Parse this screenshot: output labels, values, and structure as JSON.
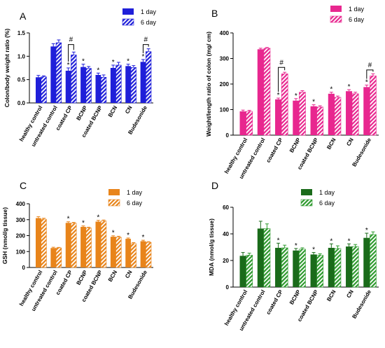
{
  "chart_data": [
    {
      "panel": "A",
      "type": "bar",
      "ylabel": "Colon/body weight ratio (%)",
      "ylim": [
        0,
        1.5
      ],
      "yticks": [
        "0.0",
        "0.5",
        "1.0",
        "1.5"
      ],
      "yticks_values": [
        0,
        0.5,
        1.0,
        1.5
      ],
      "categories": [
        "healthy control",
        "untreated control",
        "coated CP",
        "BCNP",
        "coated BCNP",
        "BCN",
        "CN",
        "Budesonide"
      ],
      "series": [
        {
          "name": "1 day",
          "values": [
            0.55,
            1.21,
            0.69,
            0.77,
            0.6,
            0.75,
            0.79,
            0.88
          ],
          "errors": [
            0.04,
            0.06,
            0.06,
            0.06,
            0.04,
            0.06,
            0.04,
            0.05
          ],
          "color": "#1f1fd9",
          "pattern": "solid"
        },
        {
          "name": "6 day",
          "values": [
            0.56,
            1.29,
            1.03,
            0.74,
            0.55,
            0.81,
            0.76,
            1.1
          ],
          "errors": [
            0.02,
            0.06,
            0.06,
            0.04,
            0.05,
            0.06,
            0.04,
            0.06
          ],
          "color": "#1f1fd9",
          "pattern": "hatched"
        }
      ],
      "stars": [
        {
          "category": 2,
          "series": 0
        },
        {
          "category": 3,
          "series": 0
        },
        {
          "category": 4,
          "series": 0
        },
        {
          "category": 5,
          "series": 0
        },
        {
          "category": 6,
          "series": 0
        },
        {
          "category": 7,
          "series": 0
        }
      ],
      "brackets": [
        {
          "category": 2,
          "label": "#",
          "y": 1.25
        },
        {
          "category": 7,
          "label": "#",
          "y": 1.25
        }
      ],
      "legend_position": "top-right"
    },
    {
      "panel": "B",
      "type": "bar",
      "ylabel": "Weight/length ratio of colon (mg/ cm)",
      "ylim": [
        0,
        400
      ],
      "yticks": [
        "0",
        "100",
        "200",
        "300",
        "400"
      ],
      "yticks_values": [
        0,
        100,
        200,
        300,
        400
      ],
      "categories": [
        "healthy control",
        "untreated control",
        "coated CP",
        "BCNP",
        "coated BCNP",
        "BCN",
        "CN",
        "Budesonide"
      ],
      "series": [
        {
          "name": "1 day",
          "values": [
            93,
            336,
            140,
            135,
            113,
            162,
            172,
            188
          ],
          "errors": [
            5,
            4,
            5,
            8,
            6,
            6,
            6,
            8
          ],
          "color": "#e8278f",
          "pattern": "solid"
        },
        {
          "name": "6 day",
          "values": [
            93,
            340,
            240,
            168,
            110,
            148,
            162,
            232
          ],
          "errors": [
            4,
            3,
            6,
            6,
            5,
            5,
            6,
            8
          ],
          "color": "#e8278f",
          "pattern": "hatched"
        }
      ],
      "stars": [
        {
          "category": 2,
          "series": 0
        },
        {
          "category": 3,
          "series": 0
        },
        {
          "category": 4,
          "series": 0
        },
        {
          "category": 5,
          "series": 0
        },
        {
          "category": 6,
          "series": 0
        },
        {
          "category": 7,
          "series": 0
        }
      ],
      "brackets": [
        {
          "category": 2,
          "label": "#",
          "y": 265
        },
        {
          "category": 7,
          "label": "#",
          "y": 255
        }
      ],
      "legend_position": "top-right"
    },
    {
      "panel": "C",
      "type": "bar",
      "ylabel": "GSH (nmol/g tissue)",
      "ylim": [
        0,
        400
      ],
      "yticks": [
        "0",
        "100",
        "200",
        "300",
        "400"
      ],
      "yticks_values": [
        0,
        100,
        200,
        300,
        400
      ],
      "categories": [
        "healthy control",
        "untreated control",
        "coated CP",
        "BCNP",
        "coated BCNP",
        "BCN",
        "CN",
        "Budesonide"
      ],
      "series": [
        {
          "name": "1 day",
          "values": [
            310,
            122,
            280,
            255,
            288,
            193,
            180,
            165
          ],
          "errors": [
            9,
            5,
            7,
            6,
            8,
            6,
            5,
            6
          ],
          "color": "#e8841a",
          "pattern": "solid"
        },
        {
          "name": "6 day",
          "values": [
            303,
            123,
            278,
            248,
            292,
            190,
            150,
            158
          ],
          "errors": [
            6,
            3,
            5,
            5,
            6,
            6,
            6,
            4
          ],
          "color": "#e8841a",
          "pattern": "hatched"
        }
      ],
      "stars": [
        {
          "category": 2,
          "series": 0
        },
        {
          "category": 3,
          "series": 0
        },
        {
          "category": 4,
          "series": 0
        },
        {
          "category": 5,
          "series": 0
        },
        {
          "category": 6,
          "series": 0
        },
        {
          "category": 7,
          "series": 0
        }
      ],
      "brackets": [],
      "legend_position": "top-right"
    },
    {
      "panel": "D",
      "type": "bar",
      "ylabel": "MDA (nmol/g tissue)",
      "ylim": [
        0,
        60
      ],
      "yticks": [
        "0",
        "20",
        "40",
        "60"
      ],
      "yticks_values": [
        0,
        20,
        40,
        60
      ],
      "categories": [
        "healthy control",
        "untreated control",
        "coated CP",
        "BCNP",
        "coated BCNP",
        "BCN",
        "CN",
        "Budesonide"
      ],
      "series": [
        {
          "name": "1 day",
          "values": [
            23.5,
            44,
            29.5,
            27.5,
            24.5,
            29.5,
            30.5,
            37
          ],
          "errors": [
            2.5,
            5.5,
            3.5,
            1.5,
            1.5,
            3,
            2,
            3.5
          ],
          "color": "#1a6b1a",
          "pattern": "solid"
        },
        {
          "name": "6 day",
          "values": [
            24,
            44,
            29.5,
            28.5,
            24,
            29,
            30.5,
            39.5
          ],
          "errors": [
            1.5,
            3.5,
            2,
            1,
            1,
            2,
            1.5,
            2
          ],
          "color": "#2e9a2e",
          "pattern": "hatched"
        }
      ],
      "stars": [
        {
          "category": 2,
          "series": 0
        },
        {
          "category": 3,
          "series": 0
        },
        {
          "category": 4,
          "series": 0
        },
        {
          "category": 5,
          "series": 0
        },
        {
          "category": 6,
          "series": 0
        },
        {
          "category": 7,
          "series": 0
        }
      ],
      "brackets": [],
      "legend_position": "top-right"
    }
  ]
}
